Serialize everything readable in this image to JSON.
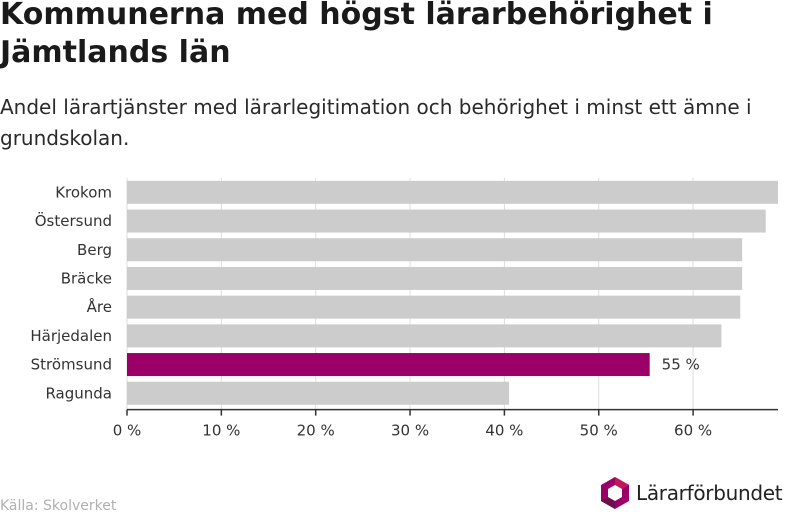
{
  "title": "Kommunerna med högst lärarbehörighet i Jämtlands län",
  "subtitle": "Andel lärartjänster med lärarlegitimation och behörighet i minst ett ämne i grundskolan.",
  "source": "Källa: Skolverket",
  "logo_text": "Lärarförbundet",
  "colors": {
    "bar": "#cccccc",
    "highlight": "#9b0068",
    "grid": "#dddddd",
    "axis": "#333333"
  },
  "chart_data": {
    "type": "bar",
    "orientation": "horizontal",
    "title": "Kommunerna med högst lärarbehörighet i Jämtlands län",
    "subtitle": "Andel lärartjänster med lärarlegitimation och behörighet i minst ett ämne i grundskolan.",
    "categories": [
      "Krokom",
      "Östersund",
      "Berg",
      "Bräcke",
      "Åre",
      "Härjedalen",
      "Strömsund",
      "Ragunda"
    ],
    "values": [
      69,
      67.7,
      65.2,
      65.2,
      65,
      63,
      55.4,
      40.5
    ],
    "highlight_index": 6,
    "data_labels": {
      "6": "55 %"
    },
    "xlim": [
      0,
      69
    ],
    "xticks": [
      0,
      10,
      20,
      30,
      40,
      50,
      60
    ],
    "xtick_labels": [
      "0 %",
      "10 %",
      "20 %",
      "30 %",
      "40 %",
      "50 %",
      "60 %"
    ],
    "grid": true
  }
}
